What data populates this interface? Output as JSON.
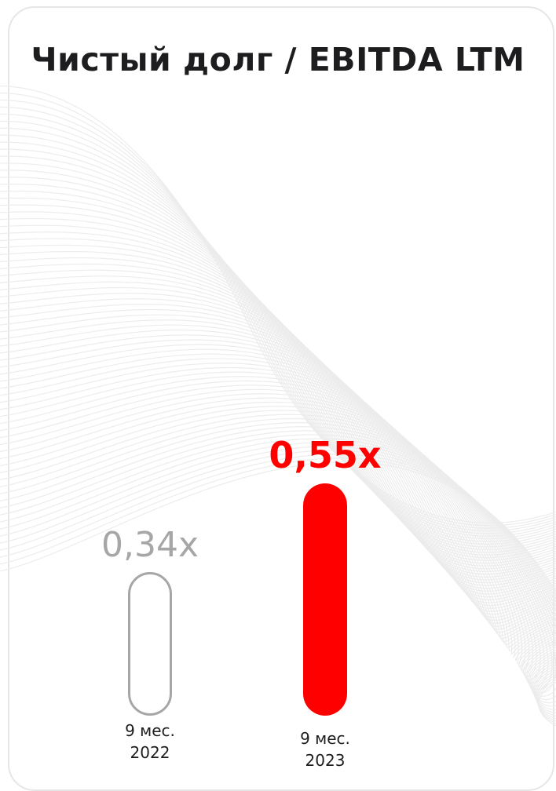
{
  "title": "Чистый долг / EBITDA LTM",
  "chart_data": {
    "type": "bar",
    "title": "Чистый долг / EBITDA LTM",
    "categories": [
      "9 мес. 2022",
      "9 мес. 2023"
    ],
    "category_lines": [
      [
        "9 мес.",
        "2022"
      ],
      [
        "9 мес.",
        "2023"
      ]
    ],
    "values": [
      0.34,
      0.55
    ],
    "value_labels": [
      "0,34x",
      "0,55x"
    ],
    "colors": [
      "#a6a6a6",
      "#ff0000"
    ],
    "styles": [
      "outline",
      "filled"
    ],
    "ylim": [
      0,
      0.55
    ],
    "grid": false
  }
}
